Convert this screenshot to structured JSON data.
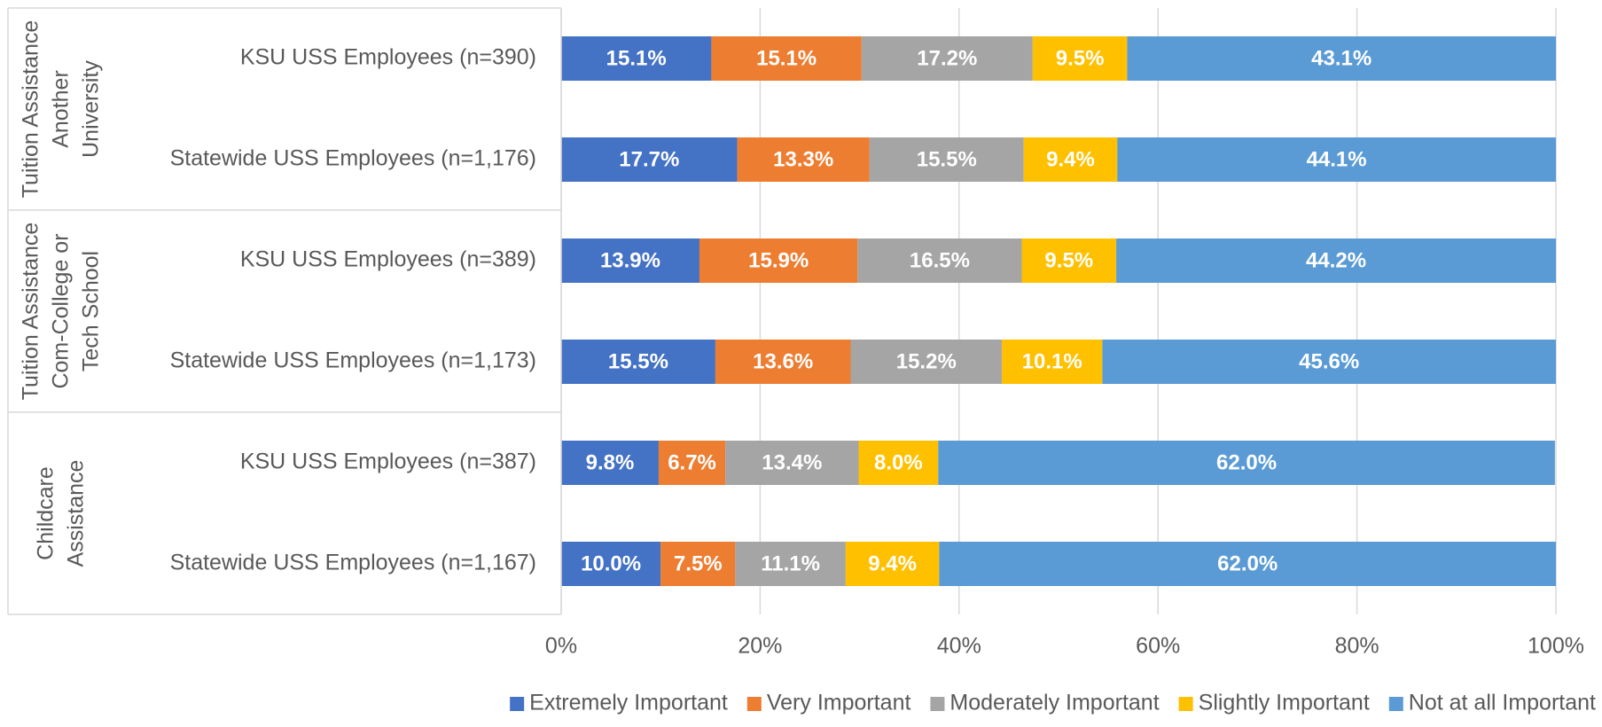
{
  "chart_data": {
    "type": "stacked_bar_horizontal",
    "groups": [
      [
        "Tuition Assistance",
        "Another",
        "University"
      ],
      [
        "Tuition Assistance",
        "Com-College or",
        "Tech School"
      ],
      [
        "Childcare",
        "Assistance"
      ]
    ],
    "categories": [
      "KSU USS Employees (n=390)",
      "Statewide USS Employees (n=1,176)",
      "KSU USS Employees (n=389)",
      "Statewide USS Employees (n=1,173)",
      "KSU USS Employees (n=387)",
      "Statewide USS Employees (n=1,167)"
    ],
    "series": [
      {
        "name": "Extremely Important",
        "color": "#4472c4",
        "values": [
          15.1,
          17.7,
          13.9,
          15.5,
          9.8,
          10.0
        ],
        "value_labels": [
          "15.1%",
          "17.7%",
          "13.9%",
          "15.5%",
          "9.8%",
          "10.0%"
        ]
      },
      {
        "name": "Very Important",
        "color": "#ed7d31",
        "values": [
          15.1,
          13.3,
          15.9,
          13.6,
          6.7,
          7.5
        ],
        "value_labels": [
          "15.1%",
          "13.3%",
          "15.9%",
          "13.6%",
          "6.7%",
          "7.5%"
        ]
      },
      {
        "name": "Moderately Important",
        "color": "#a5a5a5",
        "values": [
          17.2,
          15.5,
          16.5,
          15.2,
          13.4,
          11.1
        ],
        "value_labels": [
          "17.2%",
          "15.5%",
          "16.5%",
          "15.2%",
          "13.4%",
          "11.1%"
        ]
      },
      {
        "name": "Slightly Important",
        "color": "#ffc000",
        "values": [
          9.5,
          9.4,
          9.5,
          10.1,
          8.0,
          9.4
        ],
        "value_labels": [
          "9.5%",
          "9.4%",
          "9.5%",
          "10.1%",
          "8.0%",
          "9.4%"
        ]
      },
      {
        "name": "Not at all Important",
        "color": "#5b9bd5",
        "values": [
          43.1,
          44.1,
          44.2,
          45.6,
          62.0,
          62.0
        ],
        "value_labels": [
          "43.1%",
          "44.1%",
          "44.2%",
          "45.6%",
          "62.0%",
          "62.0%"
        ]
      }
    ],
    "xlim": [
      0,
      100
    ],
    "xticks": [
      {
        "value": 0,
        "label": "0%"
      },
      {
        "value": 20,
        "label": "20%"
      },
      {
        "value": 40,
        "label": "40%"
      },
      {
        "value": 60,
        "label": "60%"
      },
      {
        "value": 80,
        "label": "80%"
      },
      {
        "value": 100,
        "label": "100%"
      }
    ],
    "grid": true,
    "legend": "bottom"
  }
}
